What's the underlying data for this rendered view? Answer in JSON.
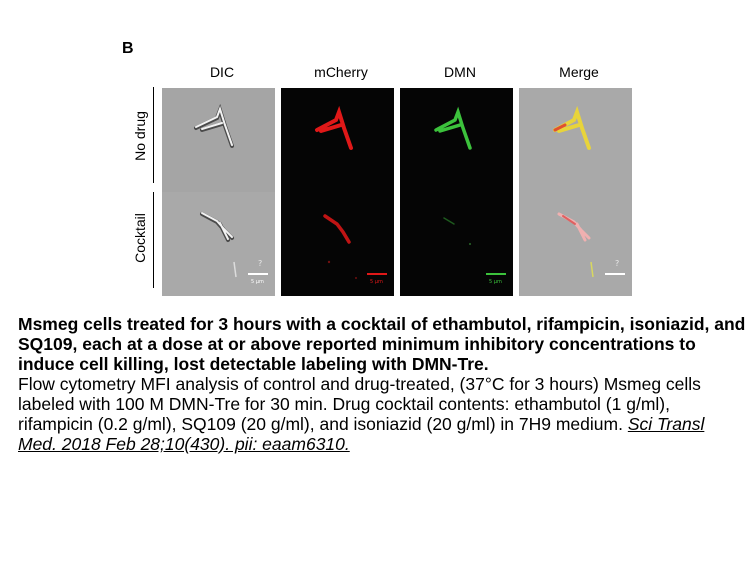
{
  "figure": {
    "panel_letter": "B",
    "columns": [
      "DIC",
      "mCherry",
      "DMN",
      "Merge"
    ],
    "rows": [
      "No drug",
      "Cocktail"
    ],
    "scale_bar_text": "5 µm",
    "colors": {
      "dic_bg": "#a8a8a8",
      "fluor_bg": "#050505",
      "mcherry": "#e01818",
      "dmn": "#3cc23c",
      "merge": "#e8d43a"
    }
  },
  "caption": {
    "bold": "Msmeg cells treated for 3 hours with a cocktail of ethambutol, rifampicin, isoniazid, and SQ109, each at a dose at or above reported minimum inhibitory concentrations to induce cell killing, lost detectable labeling with DMN-Tre.",
    "body": "Flow cytometry MFI analysis of control and drug-treated, (37°C for 3 hours) Msmeg cells labeled with 100  M DMN-Tre for 30 min. Drug cocktail contents: ethambutol (1  g/ml), rifampicin (0.2  g/ml), SQ109 (20  g/ml), and isoniazid (20  g/ml) in 7H9 medium.",
    "link": "Sci Transl Med. 2018 Feb 28;10(430). pii: eaam6310."
  }
}
